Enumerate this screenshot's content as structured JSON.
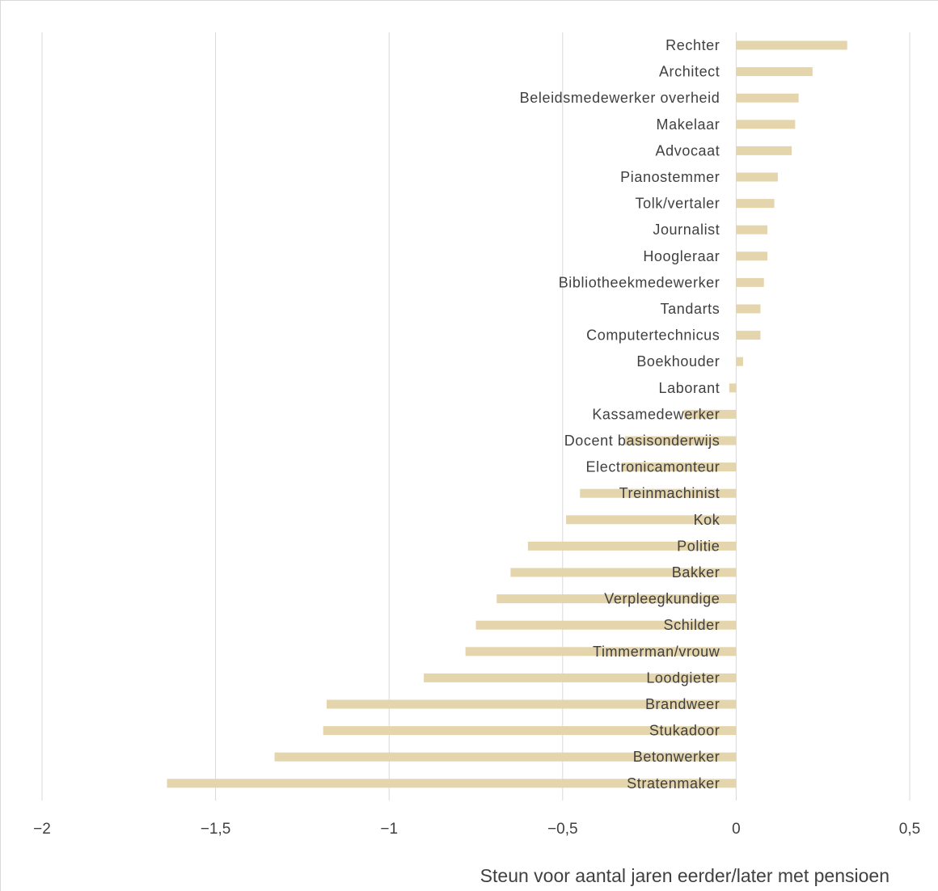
{
  "chart_data": {
    "type": "bar",
    "orientation": "horizontal",
    "title": "",
    "xlabel": "Steun voor aantal jaren eerder/later met pensioen",
    "ylabel": "",
    "xlim": [
      -2,
      0.5
    ],
    "xticks": [
      -2,
      -1.5,
      -1,
      -0.5,
      0,
      0.5
    ],
    "xtick_labels": [
      "−2",
      "−1,5",
      "−1",
      "−0,5",
      "0",
      "0,5"
    ],
    "grid": "vertical",
    "bar_color": "#e5d5ad",
    "categories": [
      "Rechter",
      "Architect",
      "Beleidsmedewerker overheid",
      "Makelaar",
      "Advocaat",
      "Pianostemmer",
      "Tolk/vertaler",
      "Journalist",
      "Hoogleraar",
      "Bibliotheekmedewerker",
      "Tandarts",
      "Computertechnicus",
      "Boekhouder",
      "Laborant",
      "Kassamedewerker",
      "Docent basisonderwijs",
      "Electronicamonteur",
      "Treinmachinist",
      "Kok",
      "Politie",
      "Bakker",
      "Verpleegkundige",
      "Schilder",
      "Timmerman/vrouw",
      "Loodgieter",
      "Brandweer",
      "Stukadoor",
      "Betonwerker",
      "Stratenmaker"
    ],
    "values": [
      0.32,
      0.22,
      0.18,
      0.17,
      0.16,
      0.12,
      0.11,
      0.09,
      0.09,
      0.08,
      0.07,
      0.07,
      0.02,
      -0.02,
      -0.15,
      -0.32,
      -0.33,
      -0.45,
      -0.49,
      -0.6,
      -0.65,
      -0.69,
      -0.75,
      -0.78,
      -0.9,
      -1.18,
      -1.19,
      -1.33,
      -1.64
    ]
  }
}
